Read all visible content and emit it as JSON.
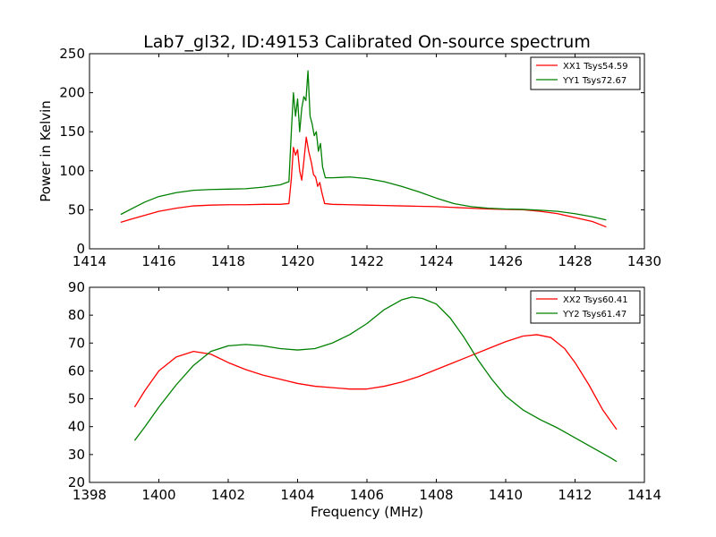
{
  "title": "Lab7_gl32, ID:49153 Calibrated On-source spectrum",
  "colors": {
    "xx": "#ff0000",
    "yy": "#008000"
  },
  "chart_data": [
    {
      "type": "line",
      "xlabel": "",
      "ylabel": "Power in Kelvin",
      "xlim": [
        1414,
        1430
      ],
      "ylim": [
        0,
        250
      ],
      "xticks": [
        "1414",
        "1416",
        "1418",
        "1420",
        "1422",
        "1424",
        "1426",
        "1428",
        "1430"
      ],
      "yticks": [
        "0",
        "50",
        "100",
        "150",
        "200",
        "250"
      ],
      "legend_position": "top-right",
      "series": [
        {
          "name": "XX1 Tsys54.59",
          "x": [
            1414.9,
            1415.2,
            1415.6,
            1416.0,
            1416.5,
            1417.0,
            1417.5,
            1418.0,
            1418.5,
            1419.0,
            1419.5,
            1419.75,
            1419.82,
            1419.88,
            1419.94,
            1420.0,
            1420.06,
            1420.12,
            1420.18,
            1420.25,
            1420.32,
            1420.4,
            1420.46,
            1420.52,
            1420.58,
            1420.64,
            1420.7,
            1420.78,
            1421.0,
            1421.5,
            1422.0,
            1422.5,
            1423.0,
            1423.5,
            1424.0,
            1424.5,
            1425.0,
            1425.5,
            1426.0,
            1426.5,
            1427.0,
            1427.5,
            1428.0,
            1428.5,
            1428.9
          ],
          "y": [
            34,
            38,
            43,
            48,
            52,
            55,
            56,
            56.5,
            56.5,
            57,
            57,
            58,
            90,
            130,
            120,
            127,
            100,
            88,
            112,
            143,
            125,
            110,
            95,
            92,
            80,
            85,
            72,
            58,
            57,
            56.5,
            56,
            55.5,
            55,
            54.5,
            54,
            53,
            52,
            51,
            50.5,
            50,
            48,
            45,
            40,
            35,
            28
          ]
        },
        {
          "name": "YY1 Tsys72.67",
          "x": [
            1414.9,
            1415.2,
            1415.6,
            1416.0,
            1416.5,
            1417.0,
            1417.5,
            1418.0,
            1418.5,
            1419.0,
            1419.5,
            1419.75,
            1419.82,
            1419.88,
            1419.94,
            1420.0,
            1420.06,
            1420.12,
            1420.18,
            1420.24,
            1420.3,
            1420.36,
            1420.42,
            1420.48,
            1420.54,
            1420.6,
            1420.66,
            1420.72,
            1420.8,
            1421.0,
            1421.5,
            1422.0,
            1422.5,
            1423.0,
            1423.5,
            1424.0,
            1424.5,
            1425.0,
            1425.5,
            1426.0,
            1426.5,
            1427.0,
            1427.5,
            1428.0,
            1428.5,
            1428.9
          ],
          "y": [
            44,
            51,
            60,
            67,
            72,
            75,
            76,
            76.5,
            77,
            79,
            82,
            86,
            150,
            200,
            170,
            192,
            150,
            180,
            195,
            190,
            228,
            170,
            160,
            145,
            150,
            125,
            135,
            105,
            91,
            91,
            92,
            90,
            86,
            80,
            73,
            65,
            58,
            54,
            52,
            51,
            50.5,
            49.5,
            48,
            45,
            41,
            37
          ]
        }
      ]
    },
    {
      "type": "line",
      "xlabel": "Frequency (MHz)",
      "ylabel": "",
      "xlim": [
        1398,
        1414
      ],
      "ylim": [
        20,
        90
      ],
      "xticks": [
        "1398",
        "1400",
        "1402",
        "1404",
        "1406",
        "1408",
        "1410",
        "1412",
        "1414"
      ],
      "yticks": [
        "20",
        "30",
        "40",
        "50",
        "60",
        "70",
        "80",
        "90"
      ],
      "legend_position": "top-right",
      "series": [
        {
          "name": "XX2 Tsys60.41",
          "x": [
            1399.3,
            1399.6,
            1400.0,
            1400.5,
            1401.0,
            1401.5,
            1402.0,
            1402.5,
            1403.0,
            1403.5,
            1404.0,
            1404.5,
            1405.0,
            1405.5,
            1406.0,
            1406.5,
            1407.0,
            1407.5,
            1408.0,
            1408.5,
            1409.0,
            1409.5,
            1410.0,
            1410.5,
            1410.9,
            1411.3,
            1411.7,
            1412.0,
            1412.4,
            1412.8,
            1413.2
          ],
          "y": [
            47,
            53,
            60,
            65,
            67,
            66,
            63,
            60.5,
            58.5,
            57,
            55.5,
            54.5,
            54,
            53.5,
            53.5,
            54.5,
            56,
            58,
            60.5,
            63,
            65.5,
            68,
            70.5,
            72.5,
            73,
            72,
            68,
            63,
            55,
            46,
            39
          ]
        },
        {
          "name": "YY2 Tsys61.47",
          "x": [
            1399.3,
            1399.6,
            1400.0,
            1400.5,
            1401.0,
            1401.5,
            1402.0,
            1402.5,
            1403.0,
            1403.5,
            1404.0,
            1404.5,
            1405.0,
            1405.5,
            1406.0,
            1406.5,
            1407.0,
            1407.3,
            1407.6,
            1408.0,
            1408.4,
            1408.8,
            1409.2,
            1409.6,
            1410.0,
            1410.5,
            1411.0,
            1411.5,
            1412.0,
            1412.5,
            1413.0,
            1413.2
          ],
          "y": [
            35,
            40,
            47,
            55,
            62,
            67,
            69,
            69.5,
            69,
            68,
            67.5,
            68,
            70,
            73,
            77,
            82,
            85.5,
            86.5,
            86,
            84,
            79,
            72,
            64,
            57,
            51,
            46,
            42.5,
            39.5,
            36,
            32.5,
            29,
            27.5
          ]
        }
      ]
    }
  ]
}
